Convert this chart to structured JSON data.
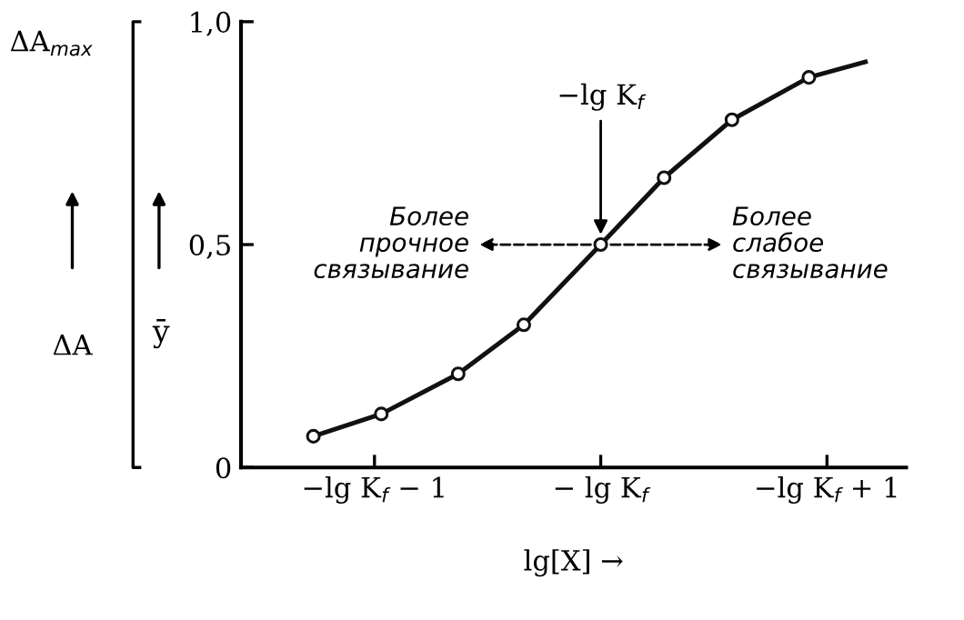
{
  "chart_data": {
    "type": "line",
    "xlabel": "lg[X] →",
    "ylabel": "ȳ",
    "series": [
      {
        "color": "#111111",
        "marker": "none",
        "x": [
          -1.27,
          -0.97,
          -0.63,
          -0.34,
          0,
          0.28,
          0.58,
          0.92,
          1.17
        ],
        "values": [
          0.07,
          0.12,
          0.21,
          0.32,
          0.5,
          0.65,
          0.78,
          0.875,
          0.91
        ]
      },
      {
        "type": "scatter",
        "color": "#111111",
        "marker": "circle",
        "x": [
          -1.27,
          -0.97,
          -0.63,
          -0.34,
          0,
          0.28,
          0.58,
          0.92
        ],
        "values": [
          0.07,
          0.12,
          0.21,
          0.32,
          0.5,
          0.65,
          0.78,
          0.875
        ]
      }
    ],
    "xlim": [
      -1.59,
      1.35
    ],
    "ylim": [
      0,
      1.0
    ],
    "xticks": [
      {
        "value": -1,
        "label": "−lg K$_{f}$ − 1"
      },
      {
        "value": 0,
        "label": "− lg K$_{f}$"
      },
      {
        "value": 1,
        "label": "−lg K$_{f}$ + 1"
      }
    ],
    "yticks": [
      0,
      {
        "value": 0.5,
        "label": "0,5"
      },
      {
        "value": 1.0,
        "label": "1,0"
      }
    ],
    "annotations": [
      {
        "text": "−lg K$_{f}$",
        "x": 0,
        "y": 0.5
      },
      "Более\nпрочное\nсвязывание",
      "Более\nслабое\nсвязывание",
      "ΔA$_{max}$",
      "ΔA"
    ],
    "grid": false
  }
}
